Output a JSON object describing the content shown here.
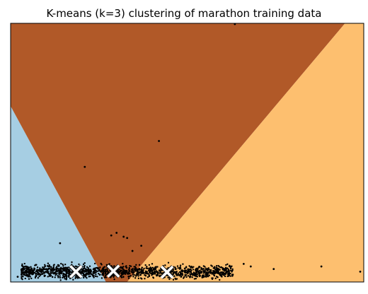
{
  "chart_data": {
    "type": "scatter",
    "title": "K-means (k=3) clustering of marathon training data",
    "xlabel": "",
    "ylabel": "",
    "xlim": [
      0,
      1
    ],
    "ylim": [
      0,
      1
    ],
    "xticks": [],
    "yticks": [],
    "grid": false,
    "legend": "none",
    "num_clusters": 3,
    "region_colors": {
      "cluster_left": "#a6cee3",
      "cluster_middle": "#b15928",
      "cluster_right": "#fdbf6f"
    },
    "regions": [
      {
        "cluster": "cluster_left",
        "polygon": [
          [
            0,
            0.68
          ],
          [
            0,
            0
          ],
          [
            0.27,
            0
          ]
        ]
      },
      {
        "cluster": "cluster_middle",
        "polygon": [
          [
            0,
            1
          ],
          [
            0.947,
            1
          ],
          [
            0.33,
            0
          ],
          [
            0.27,
            0
          ],
          [
            0,
            0.68
          ]
        ]
      },
      {
        "cluster": "cluster_right",
        "polygon": [
          [
            0.947,
            1
          ],
          [
            1,
            1
          ],
          [
            1,
            0
          ],
          [
            0.33,
            0
          ]
        ]
      }
    ],
    "centroids": [
      {
        "cluster": "cluster_left",
        "x": 0.185,
        "y": 0.04
      },
      {
        "cluster": "cluster_middle",
        "x": 0.291,
        "y": 0.042
      },
      {
        "cluster": "cluster_right",
        "x": 0.443,
        "y": 0.038
      }
    ],
    "outliers": [
      {
        "x": 0.635,
        "y": 0.997
      },
      {
        "x": 0.42,
        "y": 0.545
      },
      {
        "x": 0.21,
        "y": 0.445
      },
      {
        "x": 0.3,
        "y": 0.19
      },
      {
        "x": 0.285,
        "y": 0.18
      },
      {
        "x": 0.32,
        "y": 0.175
      },
      {
        "x": 0.33,
        "y": 0.17
      },
      {
        "x": 0.14,
        "y": 0.15
      },
      {
        "x": 0.37,
        "y": 0.14
      },
      {
        "x": 0.345,
        "y": 0.12
      },
      {
        "x": 0.66,
        "y": 0.07
      },
      {
        "x": 0.68,
        "y": 0.06
      },
      {
        "x": 0.745,
        "y": 0.05
      },
      {
        "x": 0.99,
        "y": 0.04
      },
      {
        "x": 0.88,
        "y": 0.06
      },
      {
        "x": 0.02,
        "y": 0.02
      }
    ],
    "dense_band": {
      "x_range": [
        0.03,
        0.63
      ],
      "y_center": 0.04,
      "y_spread": 0.025,
      "point_count": 1400
    }
  }
}
